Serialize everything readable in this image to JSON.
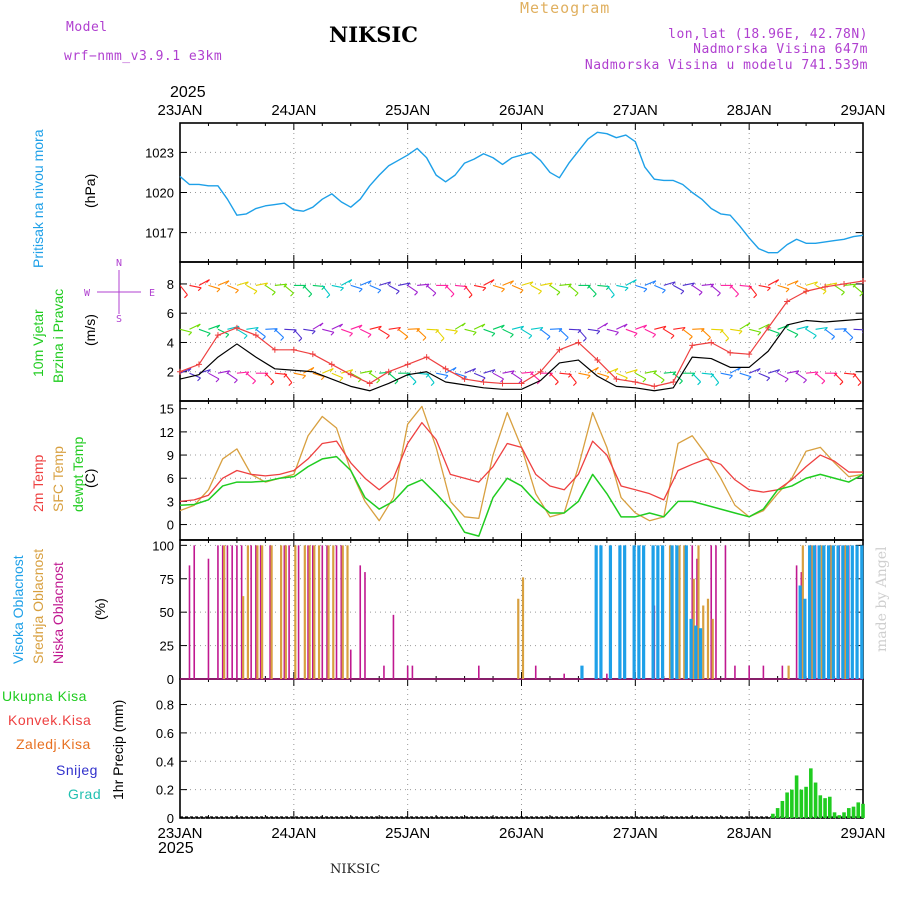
{
  "header": {
    "model_label": "Model",
    "model_name": "wrf−nmm_v3.9.1  e3km",
    "station": "NIKSIC",
    "meteogram": "Meteogram",
    "lonlat": "lon,lat (18.96E, 42.78N)",
    "elevation": "Nadmorska Visina 647m",
    "model_elevation": "Nadmorska Visina u modelu 741.539m",
    "year_top": "2025",
    "year_bottom": "2025",
    "footer": "NIKSIC",
    "credit": "made by Angel"
  },
  "colors": {
    "pressure": "#1ea0e8",
    "temp2m": "#ee4040",
    "sfc": "#d8a040",
    "dew": "#20cc20",
    "purple": "#b040d0",
    "high_cloud": "#1ea0e8",
    "mid_cloud": "#d8a040",
    "low_cloud": "#c01890",
    "total_precip": "#20cc20"
  },
  "x_axis": {
    "dates": [
      "23JAN",
      "24JAN",
      "25JAN",
      "26JAN",
      "27JAN",
      "28JAN",
      "29JAN"
    ]
  },
  "labels": {
    "pressure": "Pritisak na nivou mora",
    "pressure_unit": "(hPa)",
    "wind_a": "10m Vjetar",
    "wind_b": "Brzina i Pravac",
    "wind_unit": "(m/s)",
    "temp2m": "2m Temp",
    "sfc": "SFC Temp",
    "dew": "dewpt Temp",
    "temp_unit": "(C)",
    "cloud_high": "Visoka Oblacnost",
    "cloud_mid": "Srednja Oblacnost",
    "cloud_low": "Niska Oblacnost",
    "cloud_unit": "(%)",
    "precip_total": "Ukupna Kisa",
    "precip_conv": "Konvek.Kisa",
    "precip_frz": "Zaledj.Kisa",
    "precip_snow": "Snijeg",
    "precip_hail": "Grad",
    "precip_unit": "1hr Precip (mm)",
    "compass_n": "N",
    "compass_w": "W",
    "compass_e": "E",
    "compass_s": "S"
  },
  "chart_data": [
    {
      "type": "line",
      "title": "Pritisak na nivou mora",
      "ylabel": "(hPa)",
      "ylim": [
        1014.8,
        1025.2
      ],
      "yticks": [
        "1017",
        "1020",
        "1023"
      ],
      "x": [
        0,
        2,
        4,
        6,
        8,
        10,
        12,
        14,
        16,
        18,
        20,
        22,
        24,
        26,
        28,
        30,
        32,
        34,
        36,
        38,
        40,
        42,
        44,
        46,
        48,
        50,
        52,
        54,
        56,
        58,
        60,
        62,
        64,
        66,
        68,
        70,
        72,
        74,
        76,
        78,
        80,
        82,
        84,
        86,
        88,
        90,
        92,
        94,
        96,
        98,
        100,
        102,
        104,
        106,
        108,
        110,
        112,
        114,
        116,
        118,
        120,
        122,
        124,
        126,
        128,
        130,
        132,
        134,
        136,
        138,
        140,
        142,
        144
      ],
      "series": [
        {
          "name": "Pressure",
          "values": [
            1021.2,
            1020.6,
            1020.6,
            1020.5,
            1020.5,
            1019.5,
            1018.3,
            1018.4,
            1018.8,
            1019.0,
            1019.1,
            1019.2,
            1018.7,
            1018.6,
            1018.9,
            1019.5,
            1019.9,
            1019.3,
            1018.9,
            1019.5,
            1020.5,
            1021.3,
            1022.0,
            1022.4,
            1022.8,
            1023.3,
            1022.6,
            1021.3,
            1020.8,
            1021.3,
            1022.2,
            1022.5,
            1022.9,
            1022.6,
            1022.1,
            1022.6,
            1022.8,
            1023.0,
            1022.4,
            1021.5,
            1021.1,
            1022.2,
            1023.1,
            1024.0,
            1024.5,
            1024.4,
            1024.1,
            1024.3,
            1023.8,
            1021.9,
            1021.0,
            1020.9,
            1020.9,
            1020.6,
            1020.0,
            1019.5,
            1018.8,
            1018.4,
            1018.3,
            1017.5,
            1016.6,
            1015.8,
            1015.5,
            1015.5,
            1016.1,
            1016.5,
            1016.2,
            1016.2,
            1016.3,
            1016.4,
            1016.5,
            1016.7,
            1016.8
          ]
        }
      ]
    },
    {
      "type": "line",
      "title": "10m Vjetar Brzina i Pravac",
      "ylabel": "(m/s)",
      "ylim": [
        0,
        9.5
      ],
      "yticks": [
        "2",
        "4",
        "6",
        "8"
      ],
      "x": [
        0,
        4,
        8,
        12,
        16,
        20,
        24,
        28,
        32,
        36,
        40,
        44,
        48,
        52,
        56,
        60,
        64,
        68,
        72,
        76,
        80,
        84,
        88,
        92,
        96,
        100,
        104,
        108,
        112,
        116,
        120,
        124,
        128,
        132,
        136,
        140,
        144
      ],
      "series": [
        {
          "name": "Mean wind",
          "values": [
            1.5,
            1.8,
            3.0,
            3.9,
            3.0,
            2.2,
            2.1,
            2.0,
            1.5,
            1.0,
            0.7,
            1.2,
            1.8,
            2.0,
            1.3,
            1.1,
            0.9,
            0.8,
            0.8,
            1.4,
            2.6,
            2.8,
            1.7,
            1.0,
            0.9,
            0.7,
            0.9,
            3.0,
            2.9,
            2.3,
            2.3,
            3.4,
            5.2,
            5.5,
            5.4,
            5.5,
            5.6
          ]
        },
        {
          "name": "Gust",
          "values": [
            2.0,
            2.5,
            4.5,
            5.0,
            4.5,
            3.5,
            3.5,
            3.2,
            2.5,
            1.8,
            1.2,
            2.0,
            2.5,
            3.0,
            2.2,
            1.5,
            1.3,
            1.2,
            1.2,
            2.0,
            3.5,
            4.0,
            2.8,
            1.5,
            1.3,
            1.0,
            1.3,
            3.8,
            4.0,
            3.3,
            3.2,
            5.0,
            6.8,
            7.5,
            7.8,
            8.0,
            8.2
          ]
        }
      ]
    },
    {
      "type": "line",
      "title": "2m Temp / SFC Temp / dewpt Temp",
      "ylabel": "(C)",
      "ylim": [
        -2,
        16
      ],
      "yticks": [
        "0",
        "3",
        "6",
        "9",
        "12",
        "15"
      ],
      "x": [
        0,
        3,
        6,
        9,
        12,
        15,
        18,
        21,
        24,
        27,
        30,
        33,
        36,
        39,
        42,
        45,
        48,
        51,
        54,
        57,
        60,
        63,
        66,
        69,
        72,
        75,
        78,
        81,
        84,
        87,
        90,
        93,
        96,
        99,
        102,
        105,
        108,
        111,
        114,
        117,
        120,
        123,
        126,
        129,
        132,
        135,
        138,
        141,
        144
      ],
      "series": [
        {
          "name": "2m Temp",
          "values": [
            3.0,
            3.2,
            3.8,
            6.0,
            7.0,
            6.5,
            6.3,
            6.5,
            7.0,
            8.5,
            10.5,
            10.8,
            8.0,
            6.0,
            4.5,
            6.0,
            10.5,
            13.2,
            11.0,
            6.5,
            6.0,
            5.5,
            7.5,
            10.5,
            10.0,
            6.5,
            5.0,
            4.5,
            6.5,
            10.8,
            9.0,
            5.0,
            4.5,
            4.0,
            3.2,
            7.0,
            7.8,
            8.5,
            7.8,
            5.8,
            4.5,
            4.2,
            4.5,
            5.8,
            7.5,
            9.0,
            8.2,
            6.8,
            6.8
          ]
        },
        {
          "name": "SFC Temp",
          "values": [
            1.8,
            2.5,
            4.5,
            8.5,
            9.8,
            6.5,
            5.5,
            6.0,
            6.5,
            11.5,
            14.0,
            12.5,
            7.0,
            3.0,
            0.5,
            3.5,
            13.0,
            15.3,
            10.0,
            3.0,
            1.0,
            0.8,
            9.0,
            14.5,
            10.0,
            4.0,
            1.0,
            1.5,
            7.5,
            14.5,
            10.0,
            3.5,
            1.5,
            0.5,
            1.0,
            10.5,
            11.5,
            9.0,
            6.0,
            2.5,
            1.0,
            1.8,
            4.0,
            6.0,
            9.5,
            10.0,
            8.0,
            6.2,
            6.5
          ]
        },
        {
          "name": "dewpt Temp",
          "values": [
            2.5,
            2.6,
            3.2,
            5.0,
            5.5,
            5.5,
            5.6,
            6.0,
            6.2,
            7.5,
            8.5,
            8.8,
            7.0,
            3.5,
            2.0,
            3.0,
            5.0,
            5.8,
            4.0,
            2.0,
            -1.0,
            -1.5,
            3.5,
            6.0,
            5.0,
            3.0,
            1.5,
            1.5,
            3.0,
            6.5,
            4.0,
            1.0,
            1.0,
            1.5,
            1.0,
            3.0,
            3.0,
            2.5,
            2.0,
            1.5,
            1.0,
            2.0,
            4.5,
            5.0,
            6.0,
            6.5,
            6.0,
            5.5,
            6.5
          ]
        }
      ]
    },
    {
      "type": "bar",
      "title": "Visoka / Srednja / Niska Oblacnost",
      "ylabel": "(%)",
      "ylim": [
        0,
        100
      ],
      "yticks": [
        "0",
        "25",
        "50",
        "75",
        "100"
      ],
      "series": [
        {
          "name": "Niska Oblacnost",
          "points": [
            [
              2,
              85
            ],
            [
              3,
              100
            ],
            [
              6,
              90
            ],
            [
              8,
              100
            ],
            [
              9,
              100
            ],
            [
              10,
              100
            ],
            [
              11,
              100
            ],
            [
              12,
              100
            ],
            [
              13,
              100
            ],
            [
              15,
              100
            ],
            [
              16,
              100
            ],
            [
              17,
              100
            ],
            [
              19,
              100
            ],
            [
              22,
              100
            ],
            [
              23,
              100
            ],
            [
              25,
              100
            ],
            [
              27,
              100
            ],
            [
              28,
              100
            ],
            [
              30,
              100
            ],
            [
              31,
              100
            ],
            [
              33,
              100
            ],
            [
              34,
              100
            ],
            [
              36,
              22
            ],
            [
              38,
              85
            ],
            [
              39,
              80
            ],
            [
              43,
              10
            ],
            [
              45,
              48
            ],
            [
              48,
              10
            ],
            [
              49,
              10
            ],
            [
              63,
              10
            ],
            [
              75,
              10
            ],
            [
              81,
              4
            ],
            [
              90,
              4
            ],
            [
              100,
              55
            ],
            [
              108,
              100
            ],
            [
              109,
              90
            ],
            [
              112,
              100
            ],
            [
              113,
              100
            ],
            [
              115,
              100
            ],
            [
              117,
              10
            ],
            [
              120,
              10
            ],
            [
              123,
              10
            ],
            [
              127,
              10
            ],
            [
              130,
              85
            ],
            [
              131,
              80
            ],
            [
              133,
              100
            ],
            [
              134,
              100
            ],
            [
              137,
              100
            ],
            [
              139,
              100
            ],
            [
              140,
              100
            ],
            [
              141,
              100
            ]
          ]
        },
        {
          "name": "Srednja Oblacnost",
          "points": [
            [
              9,
              100
            ],
            [
              13,
              62
            ],
            [
              14,
              100
            ],
            [
              16,
              100
            ],
            [
              17,
              100
            ],
            [
              19,
              100
            ],
            [
              21,
              100
            ],
            [
              22,
              100
            ],
            [
              24,
              100
            ],
            [
              26,
              100
            ],
            [
              27,
              100
            ],
            [
              28,
              100
            ],
            [
              29,
              100
            ],
            [
              31,
              100
            ],
            [
              32,
              100
            ],
            [
              34,
              100
            ],
            [
              35,
              100
            ],
            [
              71,
              60
            ],
            [
              72,
              76
            ],
            [
              103,
              100
            ],
            [
              105,
              100
            ],
            [
              106,
              100
            ],
            [
              108,
              75
            ],
            [
              109,
              100
            ],
            [
              110,
              55
            ],
            [
              111,
              60
            ],
            [
              112,
              45
            ],
            [
              128,
              10
            ],
            [
              131,
              100
            ],
            [
              133,
              100
            ],
            [
              135,
              100
            ],
            [
              137,
              100
            ],
            [
              140,
              100
            ]
          ]
        },
        {
          "name": "Visoka Oblacnost",
          "points": [
            [
              85,
              10
            ],
            [
              88,
              100
            ],
            [
              89,
              100
            ],
            [
              91,
              100
            ],
            [
              93,
              100
            ],
            [
              94,
              100
            ],
            [
              96,
              100
            ],
            [
              97,
              100
            ],
            [
              98,
              100
            ],
            [
              100,
              100
            ],
            [
              101,
              100
            ],
            [
              102,
              100
            ],
            [
              104,
              100
            ],
            [
              105,
              100
            ],
            [
              107,
              100
            ],
            [
              108,
              45
            ],
            [
              109,
              40
            ],
            [
              110,
              38
            ],
            [
              131,
              70
            ],
            [
              132,
              60
            ],
            [
              133,
              100
            ],
            [
              134,
              100
            ],
            [
              135,
              100
            ],
            [
              136,
              100
            ],
            [
              137,
              100
            ],
            [
              138,
              100
            ],
            [
              139,
              100
            ],
            [
              140,
              100
            ],
            [
              141,
              100
            ],
            [
              142,
              100
            ],
            [
              143,
              100
            ],
            [
              144,
              100
            ]
          ]
        }
      ]
    },
    {
      "type": "bar",
      "title": "1hr Precip (mm)",
      "ylabel": "1hr Precip (mm)",
      "ylim": [
        0,
        0.98
      ],
      "yticks": [
        "0",
        "0.2",
        "0.4",
        "0.6",
        "0.8"
      ],
      "series": [
        {
          "name": "Ukupna Kisa",
          "points": [
            [
              125,
              0.03
            ],
            [
              126,
              0.07
            ],
            [
              127,
              0.12
            ],
            [
              128,
              0.18
            ],
            [
              129,
              0.2
            ],
            [
              130,
              0.3
            ],
            [
              131,
              0.2
            ],
            [
              132,
              0.22
            ],
            [
              133,
              0.35
            ],
            [
              134,
              0.25
            ],
            [
              135,
              0.16
            ],
            [
              136,
              0.14
            ],
            [
              137,
              0.15
            ],
            [
              138,
              0.04
            ],
            [
              139,
              0.02
            ],
            [
              140,
              0.04
            ],
            [
              141,
              0.07
            ],
            [
              142,
              0.08
            ],
            [
              143,
              0.11
            ],
            [
              144,
              0.1
            ]
          ]
        }
      ]
    }
  ]
}
